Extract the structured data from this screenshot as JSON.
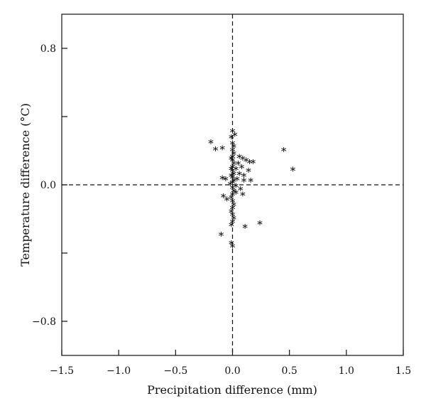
{
  "chart_data": {
    "type": "scatter",
    "title": "",
    "xlabel": "Precipitation difference (mm)",
    "ylabel": "Temperature difference (°C)",
    "xlim": [
      -1.5,
      1.5
    ],
    "ylim": [
      -1.0,
      1.0
    ],
    "xticks": [
      -1.5,
      -1.0,
      -0.5,
      0.0,
      0.5,
      1.0,
      1.5
    ],
    "xtick_labels": [
      "−1.5",
      "−1.0",
      "−0.5",
      "0.0",
      "0.5",
      "1.0",
      "1.5"
    ],
    "yticks": [
      -0.8,
      -0.4,
      0.0,
      0.4,
      0.8
    ],
    "ytick_labels": [
      "−0.8",
      "",
      "0.0",
      "",
      "0.8"
    ],
    "reference_lines": {
      "x": 0.0,
      "y": 0.0,
      "style": "dashed"
    },
    "grid": false,
    "marker": "*",
    "marker_color": "#000000",
    "points": [
      [
        -0.19,
        0.245
      ],
      [
        -0.15,
        0.205
      ],
      [
        -0.09,
        0.21
      ],
      [
        -0.09,
        0.035
      ],
      [
        -0.06,
        0.03
      ],
      [
        -0.08,
        -0.07
      ],
      [
        -0.05,
        -0.09
      ],
      [
        -0.1,
        -0.295
      ],
      [
        -0.01,
        -0.345
      ],
      [
        0.0,
        -0.365
      ],
      [
        0.0,
        0.31
      ],
      [
        0.02,
        0.29
      ],
      [
        -0.01,
        0.275
      ],
      [
        0.0,
        0.24
      ],
      [
        0.01,
        0.22
      ],
      [
        0.0,
        0.2
      ],
      [
        0.01,
        0.18
      ],
      [
        0.0,
        0.16
      ],
      [
        -0.01,
        0.15
      ],
      [
        0.0,
        0.14
      ],
      [
        0.01,
        0.12
      ],
      [
        0.0,
        0.1
      ],
      [
        -0.01,
        0.09
      ],
      [
        0.0,
        0.08
      ],
      [
        0.01,
        0.06
      ],
      [
        -0.01,
        0.05
      ],
      [
        0.0,
        0.04
      ],
      [
        0.01,
        0.02
      ],
      [
        0.0,
        0.01
      ],
      [
        -0.02,
        0.0
      ],
      [
        0.0,
        -0.02
      ],
      [
        0.01,
        -0.04
      ],
      [
        0.0,
        -0.06
      ],
      [
        -0.01,
        -0.08
      ],
      [
        0.0,
        -0.1
      ],
      [
        0.01,
        -0.12
      ],
      [
        0.0,
        -0.14
      ],
      [
        -0.01,
        -0.16
      ],
      [
        0.0,
        -0.18
      ],
      [
        0.0,
        -0.22
      ],
      [
        -0.01,
        -0.24
      ],
      [
        0.03,
        -0.05
      ],
      [
        0.06,
        0.16
      ],
      [
        0.09,
        0.15
      ],
      [
        0.12,
        0.14
      ],
      [
        0.15,
        0.13
      ],
      [
        0.18,
        0.13
      ],
      [
        0.05,
        0.12
      ],
      [
        0.08,
        0.1
      ],
      [
        0.14,
        0.08
      ],
      [
        0.03,
        0.09
      ],
      [
        0.06,
        0.06
      ],
      [
        0.1,
        0.05
      ],
      [
        0.04,
        0.03
      ],
      [
        0.1,
        0.02
      ],
      [
        0.16,
        0.02
      ],
      [
        0.03,
        -0.01
      ],
      [
        0.07,
        -0.03
      ],
      [
        0.09,
        -0.06
      ],
      [
        0.11,
        -0.25
      ],
      [
        0.24,
        -0.23
      ],
      [
        0.45,
        0.2
      ],
      [
        0.53,
        0.085
      ],
      [
        0.01,
        -0.2
      ]
    ]
  }
}
